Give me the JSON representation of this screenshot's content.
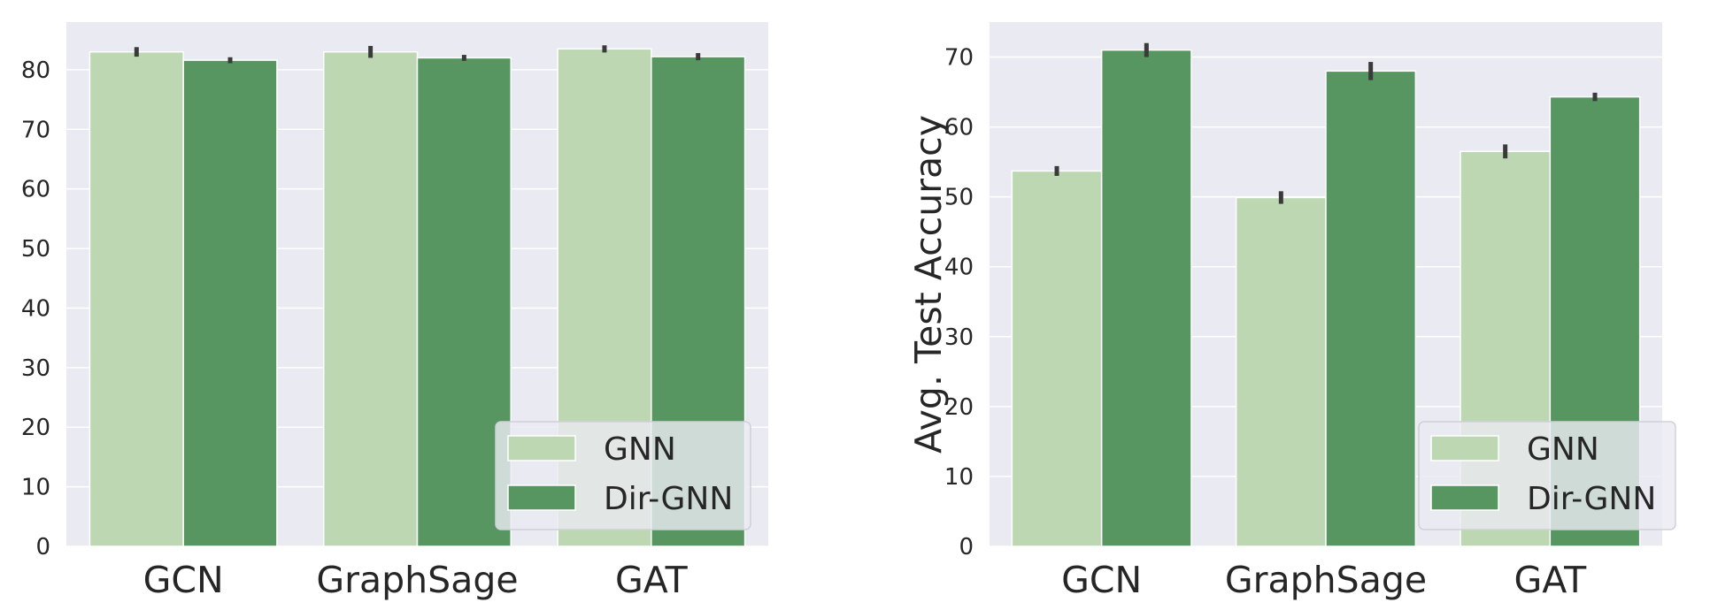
{
  "colors": {
    "gnn": "#bcd7b2",
    "dirgnn": "#579561",
    "plot_bg": "#eaeaf2",
    "grid": "#ffffff",
    "text": "#262626",
    "error": "#3a3a3a"
  },
  "chart_data": [
    {
      "type": "bar",
      "categories": [
        "GCN",
        "GraphSage",
        "GAT"
      ],
      "series": [
        {
          "name": "GNN",
          "values": [
            83.0,
            83.0,
            83.5
          ],
          "errors": [
            0.8,
            1.0,
            0.6
          ]
        },
        {
          "name": "Dir-GNN",
          "values": [
            81.6,
            82.0,
            82.2
          ],
          "errors": [
            0.5,
            0.5,
            0.6
          ]
        }
      ],
      "ylabel": "",
      "ylim": [
        0,
        88
      ],
      "yticks": [
        0,
        10,
        20,
        30,
        40,
        50,
        60,
        70,
        80
      ],
      "grid": true,
      "legend_position": "lower-right"
    },
    {
      "type": "bar",
      "categories": [
        "GCN",
        "GraphSage",
        "GAT"
      ],
      "series": [
        {
          "name": "GNN",
          "values": [
            53.7,
            49.9,
            56.5
          ],
          "errors": [
            0.7,
            0.9,
            1.0
          ]
        },
        {
          "name": "Dir-GNN",
          "values": [
            71.0,
            68.0,
            64.3
          ],
          "errors": [
            1.0,
            1.3,
            0.6
          ]
        }
      ],
      "ylabel": "Avg. Test Accuracy",
      "ylim": [
        0,
        75
      ],
      "yticks": [
        0,
        10,
        20,
        30,
        40,
        50,
        60,
        70
      ],
      "grid": true,
      "legend_position": "lower-right"
    }
  ]
}
